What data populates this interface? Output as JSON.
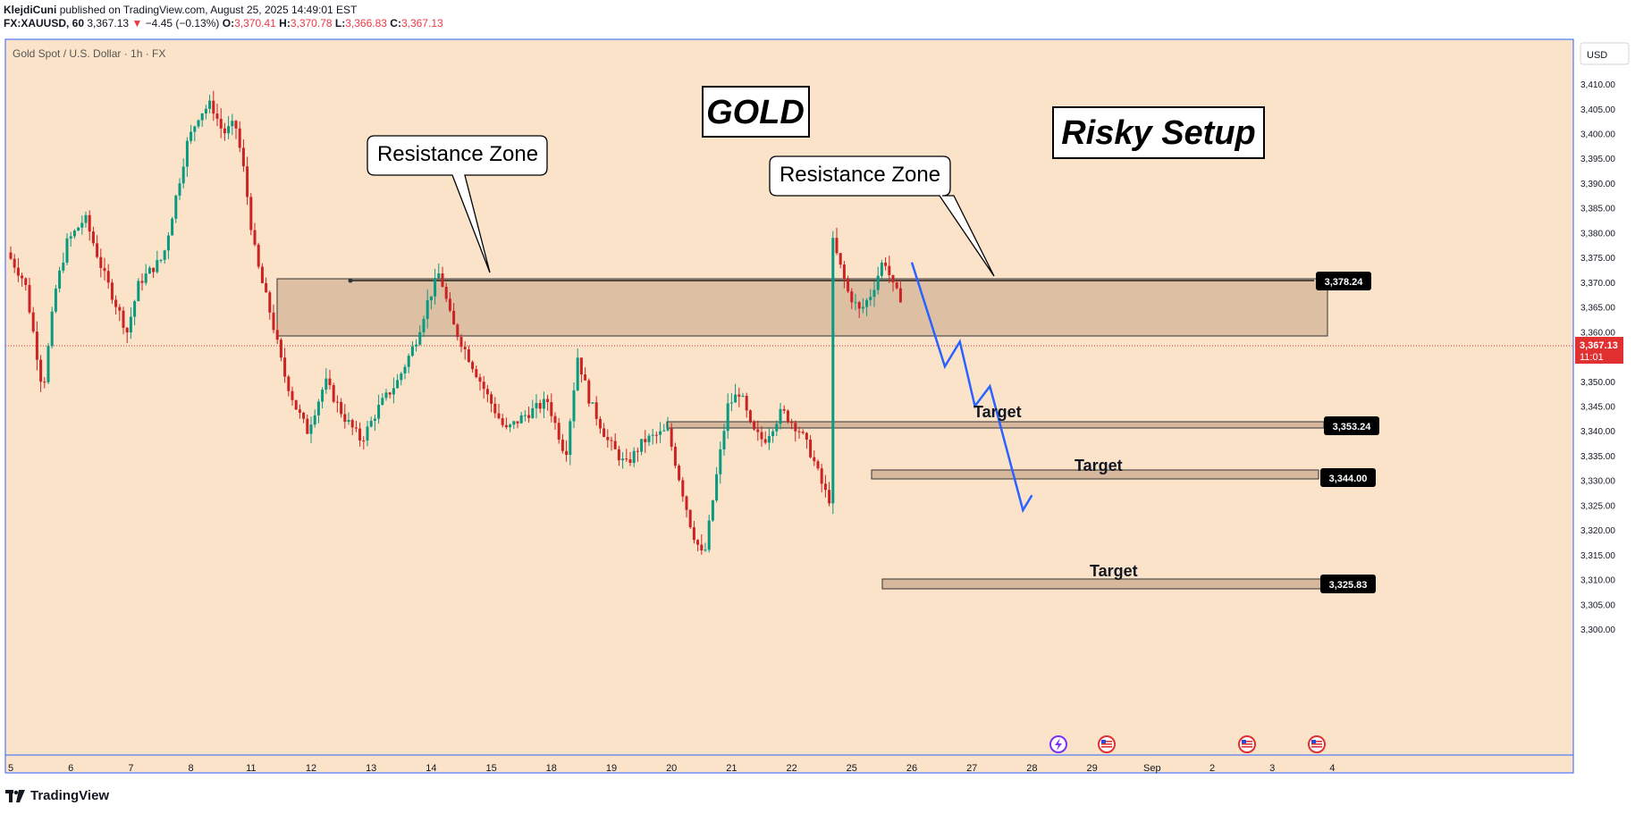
{
  "header": {
    "author": "KlejdiCuni",
    "published": "published on TradingView.com, August 25, 2025 14:49:01 EST",
    "symbol": "FX:XAUUSD, 60",
    "last": "3,367.13",
    "change_arrow": "▼",
    "change": "−4.45 (−0.13%)",
    "o_label": "O:",
    "o": "3,370.41",
    "h_label": "H:",
    "h": "3,370.78",
    "l_label": "L:",
    "l": "3,366.83",
    "c_label": "C:",
    "c": "3,367.13"
  },
  "pane": {
    "title": "Gold Spot / U.S. Dollar · 1h · FX",
    "currency": "USD",
    "last_price_label": "3,367.13",
    "countdown": "11:01",
    "background": "#fae3c9",
    "up_color": "#089981",
    "down_color": "#cc2222",
    "zone_color": "#d7b89c",
    "projection_color": "#2962ff"
  },
  "annotations": {
    "gold": "GOLD",
    "risky": "Risky Setup",
    "resistance_1": "Resistance Zone",
    "resistance_2": "Resistance Zone",
    "target_1": "Target",
    "target_2": "Target",
    "target_3": "Target"
  },
  "price_tags": {
    "resistance": "3,378.24",
    "t1": "3,353.24",
    "t2": "3,344.00",
    "t3": "3,325.83"
  },
  "footer": {
    "brand": "TradingView"
  },
  "chart_data": {
    "type": "candlestick",
    "title": "Gold Spot / U.S. Dollar · 1h · FX",
    "y_ticks": [
      3300,
      3305,
      3310,
      3315,
      3320,
      3325,
      3330,
      3335,
      3340,
      3345,
      3350,
      3355,
      3360,
      3365,
      3370,
      3375,
      3380,
      3385,
      3390,
      3395,
      3400,
      3405,
      3410
    ],
    "y_tick_labels": [
      "3,300.00",
      "3,305.00",
      "3,310.00",
      "3,315.00",
      "3,320.00",
      "3,325.00",
      "3,330.00",
      "3,335.00",
      "3,340.00",
      "3,345.00",
      "3,350.00",
      "3,355.00",
      "3,360.00",
      "3,365.00",
      "3,370.00",
      "3,375.00",
      "3,380.00",
      "3,385.00",
      "3,390.00",
      "3,395.00",
      "3,400.00",
      "3,405.00",
      "3,410.00"
    ],
    "x_labels": [
      "5",
      "6",
      "7",
      "8",
      "11",
      "12",
      "13",
      "14",
      "15",
      "18",
      "19",
      "20",
      "21",
      "22",
      "25",
      "26",
      "27",
      "28",
      "29",
      "Sep",
      "2",
      "3",
      "4"
    ],
    "ylim": [
      3297,
      3417
    ],
    "price_path": [
      [
        0,
        3376
      ],
      [
        0.3,
        3370
      ],
      [
        0.6,
        3348
      ],
      [
        0.8,
        3368
      ],
      [
        1.0,
        3378
      ],
      [
        1.3,
        3383
      ],
      [
        1.6,
        3372
      ],
      [
        2.0,
        3360
      ],
      [
        2.2,
        3370
      ],
      [
        2.6,
        3375
      ],
      [
        3.0,
        3398
      ],
      [
        3.2,
        3404
      ],
      [
        3.4,
        3406
      ],
      [
        3.6,
        3400
      ],
      [
        3.8,
        3402
      ],
      [
        3.95,
        3392
      ],
      [
        4.1,
        3378
      ],
      [
        4.2,
        3372
      ],
      [
        4.4,
        3363
      ],
      [
        4.6,
        3352
      ],
      [
        4.8,
        3345
      ],
      [
        5.0,
        3340
      ],
      [
        5.3,
        3350
      ],
      [
        5.6,
        3343
      ],
      [
        5.9,
        3338
      ],
      [
        6.2,
        3345
      ],
      [
        6.5,
        3350
      ],
      [
        6.8,
        3358
      ],
      [
        7.0,
        3366
      ],
      [
        7.2,
        3372
      ],
      [
        7.4,
        3362
      ],
      [
        7.6,
        3357
      ],
      [
        7.8,
        3352
      ],
      [
        8.0,
        3347
      ],
      [
        8.3,
        3340
      ],
      [
        8.6,
        3343
      ],
      [
        9.0,
        3346
      ],
      [
        9.3,
        3335
      ],
      [
        9.5,
        3355
      ],
      [
        9.7,
        3346
      ],
      [
        10.0,
        3338
      ],
      [
        10.3,
        3333
      ],
      [
        10.6,
        3338
      ],
      [
        11.0,
        3340
      ],
      [
        11.2,
        3330
      ],
      [
        11.4,
        3320
      ],
      [
        11.6,
        3314
      ],
      [
        11.8,
        3330
      ],
      [
        12.0,
        3345
      ],
      [
        12.2,
        3348
      ],
      [
        12.4,
        3340
      ],
      [
        12.6,
        3338
      ],
      [
        12.9,
        3344
      ],
      [
        13.2,
        3340
      ],
      [
        13.4,
        3335
      ],
      [
        13.6,
        3328
      ],
      [
        13.7,
        3326
      ],
      [
        13.75,
        3378
      ],
      [
        13.85,
        3374
      ],
      [
        14.0,
        3368
      ],
      [
        14.2,
        3364
      ],
      [
        14.4,
        3368
      ],
      [
        14.6,
        3375
      ],
      [
        14.75,
        3369
      ],
      [
        14.85,
        3367
      ]
    ],
    "last_price": 3367.13,
    "horizontal_levels": [
      {
        "label": "Resistance Zone",
        "from": 3368.5,
        "to": 3378.24
      },
      {
        "label": "Target",
        "value": 3353.24
      },
      {
        "label": "Target",
        "value": 3344.0
      },
      {
        "label": "Target",
        "value": 3325.83
      }
    ],
    "projection": [
      [
        15.0,
        3374
      ],
      [
        15.55,
        3353
      ],
      [
        15.8,
        3358
      ],
      [
        16.05,
        3345
      ],
      [
        16.3,
        3349
      ],
      [
        16.85,
        3324
      ],
      [
        17.0,
        3327
      ]
    ],
    "event_icons": [
      "flash",
      "us-flag",
      "us-flag",
      "us-flag"
    ]
  }
}
